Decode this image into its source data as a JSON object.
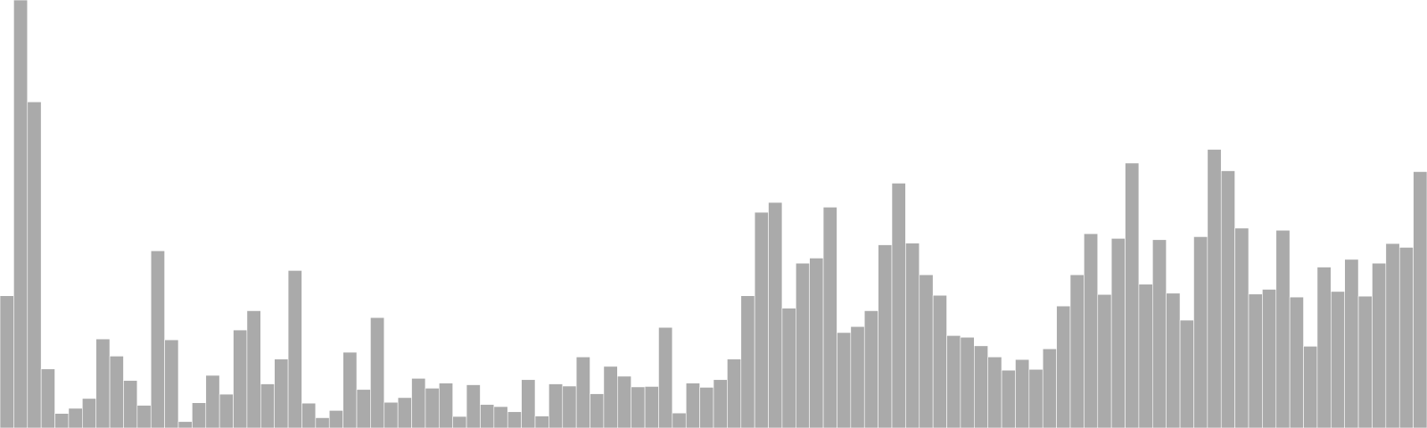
{
  "chart_data": {
    "type": "bar",
    "title": "",
    "xlabel": "",
    "ylabel": "",
    "ylim": [
      0,
      100
    ],
    "grid": false,
    "legend": "none",
    "bar_color": "#aaaaaa",
    "values": [
      30.9,
      100,
      76.2,
      13.8,
      3.4,
      4.6,
      6.9,
      20.8,
      16.8,
      11.1,
      5.3,
      41.4,
      20.6,
      1.5,
      5.9,
      12.3,
      7.9,
      22.9,
      27.4,
      10.3,
      16.1,
      36.8,
      5.8,
      2.4,
      4.1,
      17.7,
      9.0,
      25.8,
      6.0,
      7.1,
      11.6,
      9.3,
      10.5,
      2.7,
      10.1,
      5.5,
      5.0,
      3.8,
      11.3,
      2.8,
      10.3,
      9.8,
      16.6,
      8.0,
      14.4,
      12.1,
      9.6,
      9.7,
      23.5,
      3.5,
      10.5,
      9.5,
      11.3,
      16.1,
      30.9,
      50.4,
      52.7,
      28.0,
      38.5,
      39.7,
      51.6,
      22.3,
      23.7,
      27.4,
      42.8,
      57.2,
      43.2,
      35.8,
      31.0,
      21.6,
      21.2,
      19.2,
      16.6,
      13.5,
      16.0,
      13.7,
      18.5,
      28.5,
      35.8,
      45.4,
      31.2,
      44.3,
      61.9,
      33.6,
      44.0,
      31.5,
      25.2,
      44.7,
      65.1,
      60.1,
      46.7,
      31.3,
      32.4,
      46.2,
      30.6,
      19.1,
      37.6,
      31.9,
      39.4,
      30.8,
      38.5,
      43.1,
      42.2,
      59.9
    ]
  }
}
